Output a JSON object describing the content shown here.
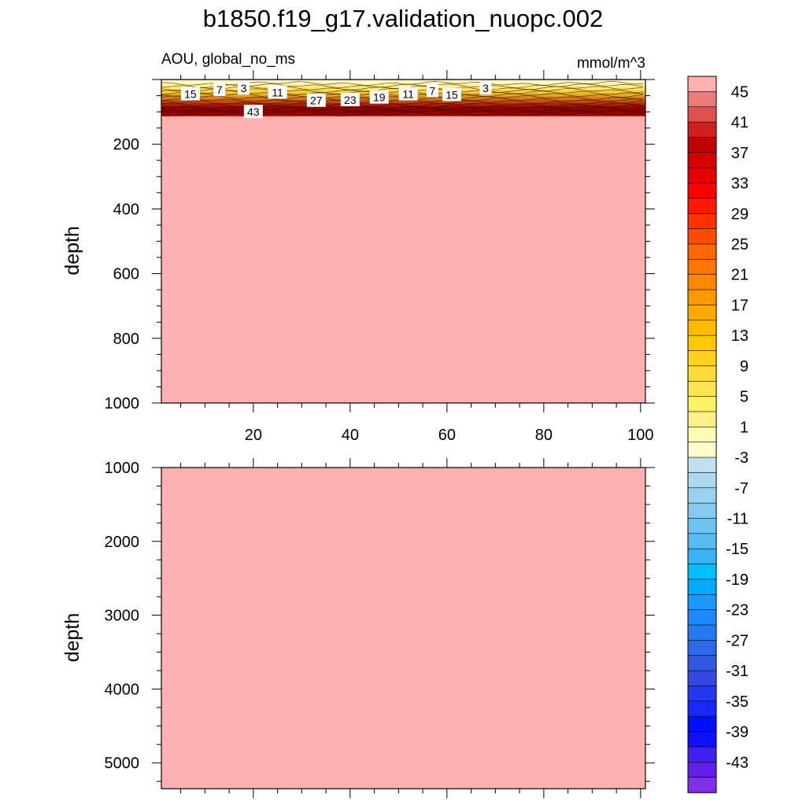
{
  "figure": {
    "title": "b1850.f19_g17.validation_nuopc.002",
    "variable_label": "AOU, global_no_ms",
    "units_label": "mmol/m^3",
    "fill_color": "#ffb0b0"
  },
  "chart_data": [
    {
      "type": "heatmap",
      "panel": "upper",
      "ylabel": "depth",
      "xlim": [
        1,
        101
      ],
      "ylim": [
        1000,
        0
      ],
      "xticks": [
        "20",
        "40",
        "60",
        "80",
        "100"
      ],
      "yticks": [
        "200",
        "400",
        "600",
        "800",
        "1000"
      ],
      "contour_labels": [
        {
          "text": "15",
          "x": 7,
          "depth": 45
        },
        {
          "text": "7",
          "x": 13,
          "depth": 32
        },
        {
          "text": "3",
          "x": 18,
          "depth": 27
        },
        {
          "text": "43",
          "x": 20,
          "depth": 100
        },
        {
          "text": "11",
          "x": 25,
          "depth": 40
        },
        {
          "text": "27",
          "x": 33,
          "depth": 65
        },
        {
          "text": "23",
          "x": 40,
          "depth": 63
        },
        {
          "text": "19",
          "x": 46,
          "depth": 55
        },
        {
          "text": "11",
          "x": 52,
          "depth": 45
        },
        {
          "text": "7",
          "x": 57,
          "depth": 35
        },
        {
          "text": "15",
          "x": 61,
          "depth": 47
        },
        {
          "text": "3",
          "x": 68,
          "depth": 27
        }
      ]
    },
    {
      "type": "heatmap",
      "panel": "lower",
      "ylabel": "depth",
      "xlim": [
        1,
        101
      ],
      "ylim": [
        5350,
        1000
      ],
      "yticks": [
        "1000",
        "2000",
        "3000",
        "4000",
        "5000"
      ]
    }
  ],
  "colorbar": {
    "labels": [
      "45",
      "41",
      "37",
      "33",
      "29",
      "25",
      "21",
      "17",
      "13",
      "9",
      "5",
      "1",
      "-3",
      "-7",
      "-11",
      "-15",
      "-19",
      "-23",
      "-27",
      "-31",
      "-35",
      "-39",
      "-43"
    ],
    "colors": [
      "#ffb0b0",
      "#ec7c7c",
      "#e05050",
      "#d02020",
      "#c00000",
      "#d40000",
      "#e80000",
      "#ff0000",
      "#ff1a00",
      "#ff3300",
      "#ff4d00",
      "#ff6600",
      "#ff7700",
      "#ff8800",
      "#ff9900",
      "#ffaa00",
      "#ffbb00",
      "#ffc800",
      "#ffd21e",
      "#ffdc3c",
      "#ffe650",
      "#fff064",
      "#fff08c",
      "#fffab4",
      "#fffccc",
      "#c0e0f0",
      "#acdaf0",
      "#98d2f0",
      "#84caf0",
      "#6ec4f0",
      "#55bcf0",
      "#38b4f5",
      "#00c0ff",
      "#00acff",
      "#1a9aff",
      "#1e88ff",
      "#2878f0",
      "#2c68e8",
      "#3158e0",
      "#3448e0",
      "#2438f0",
      "#1428ff",
      "#0010ff",
      "#1010ff",
      "#4020f0",
      "#6020e8",
      "#8030e8"
    ]
  }
}
